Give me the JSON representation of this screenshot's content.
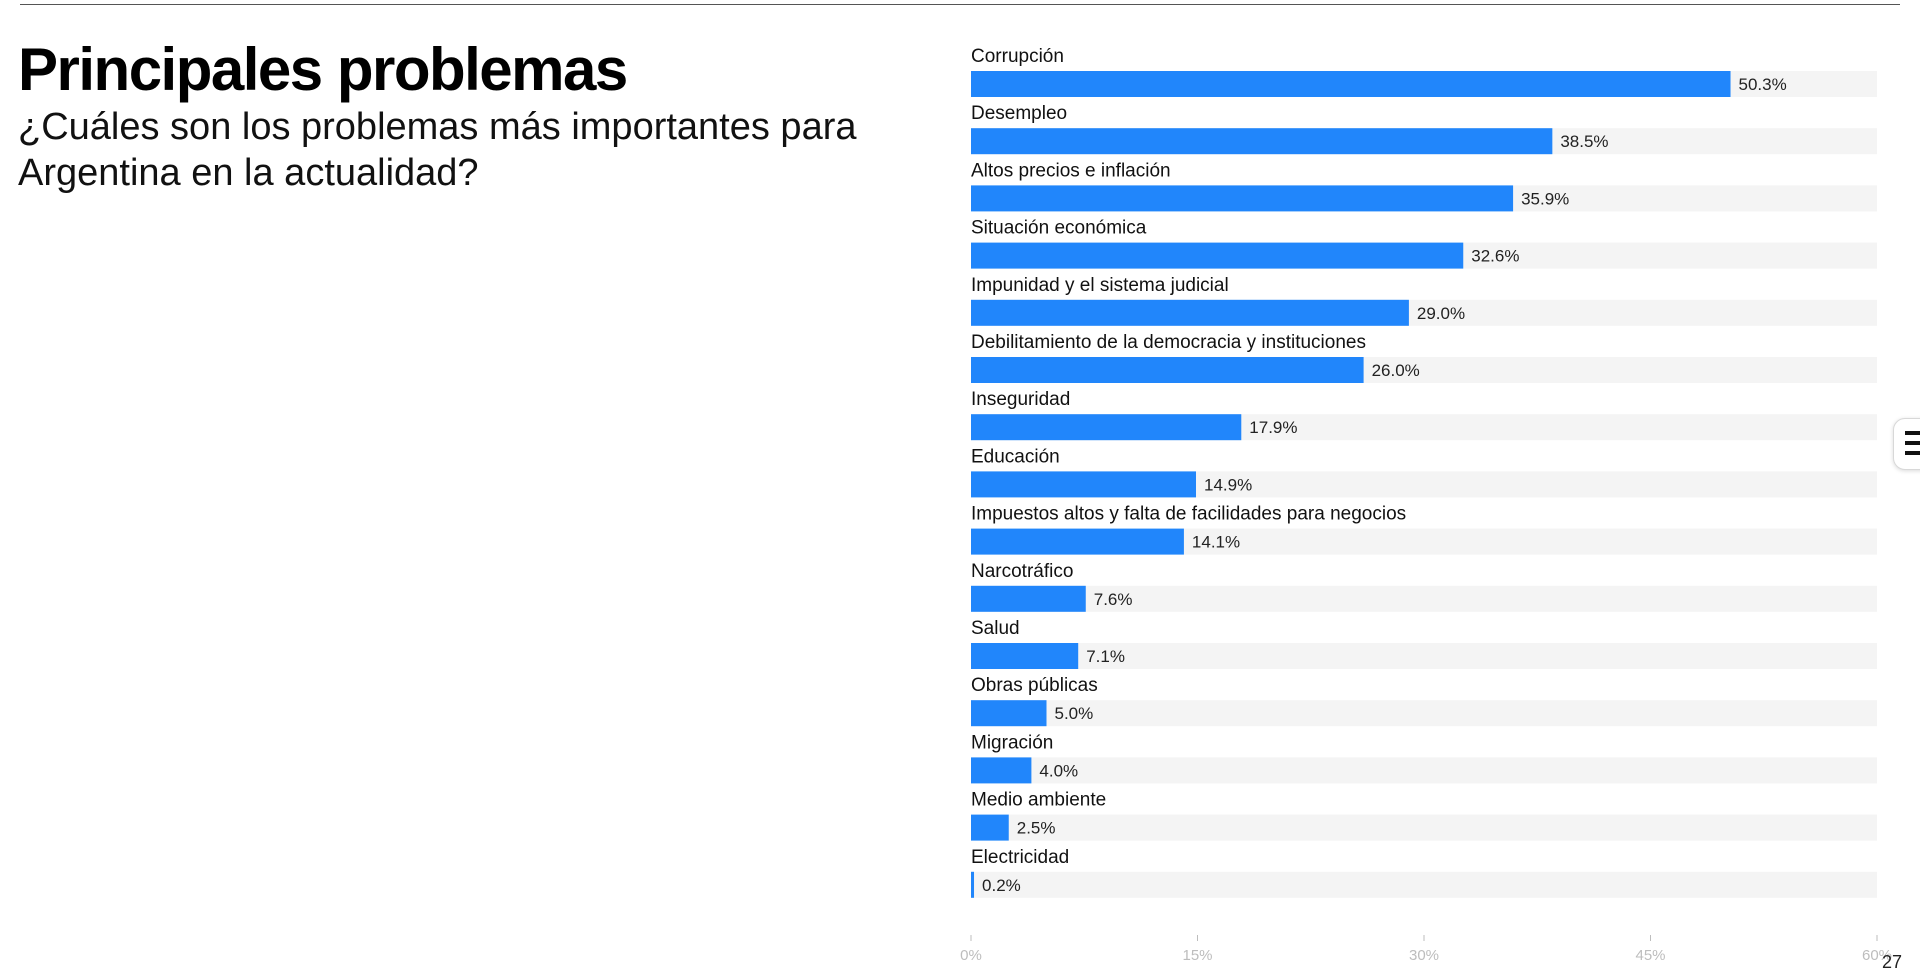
{
  "header": {
    "title": "Principales problemas",
    "subtitle": "¿Cuáles son los problemas más importantes para Argentina en la actualidad?"
  },
  "footer": {
    "page_number": "27"
  },
  "menu": {
    "icon": "menu-icon"
  },
  "colors": {
    "bar": "#2186fb",
    "track": "#f4f4f4",
    "axis_text": "#bdbdbd",
    "text": "#111111"
  },
  "chart_data": {
    "type": "bar",
    "orientation": "horizontal",
    "categories": [
      "Corrupción",
      "Desempleo",
      "Altos precios e inflación",
      "Situación económica",
      "Impunidad y el sistema judicial",
      "Debilitamiento de la democracia y instituciones",
      "Inseguridad",
      "Educación",
      "Impuestos altos y falta de facilidades para negocios",
      "Narcotráfico",
      "Salud",
      "Obras públicas",
      "Migración",
      "Medio ambiente",
      "Electricidad"
    ],
    "values": [
      50.3,
      38.5,
      35.9,
      32.6,
      29.0,
      26.0,
      17.9,
      14.9,
      14.1,
      7.6,
      7.1,
      5.0,
      4.0,
      2.5,
      0.2
    ],
    "value_labels": [
      "50.3%",
      "38.5%",
      "35.9%",
      "32.6%",
      "29.0%",
      "26.0%",
      "17.9%",
      "14.9%",
      "14.1%",
      "7.6%",
      "7.1%",
      "5.0%",
      "4.0%",
      "2.5%",
      "0.2%"
    ],
    "xlim": [
      0,
      60
    ],
    "ticks": [
      0,
      15,
      30,
      45,
      60
    ],
    "tick_labels": [
      "0%",
      "15%",
      "30%",
      "45%",
      "60%"
    ],
    "title": "Principales problemas",
    "xlabel": "",
    "ylabel": "",
    "grid": false,
    "legend": "none"
  }
}
